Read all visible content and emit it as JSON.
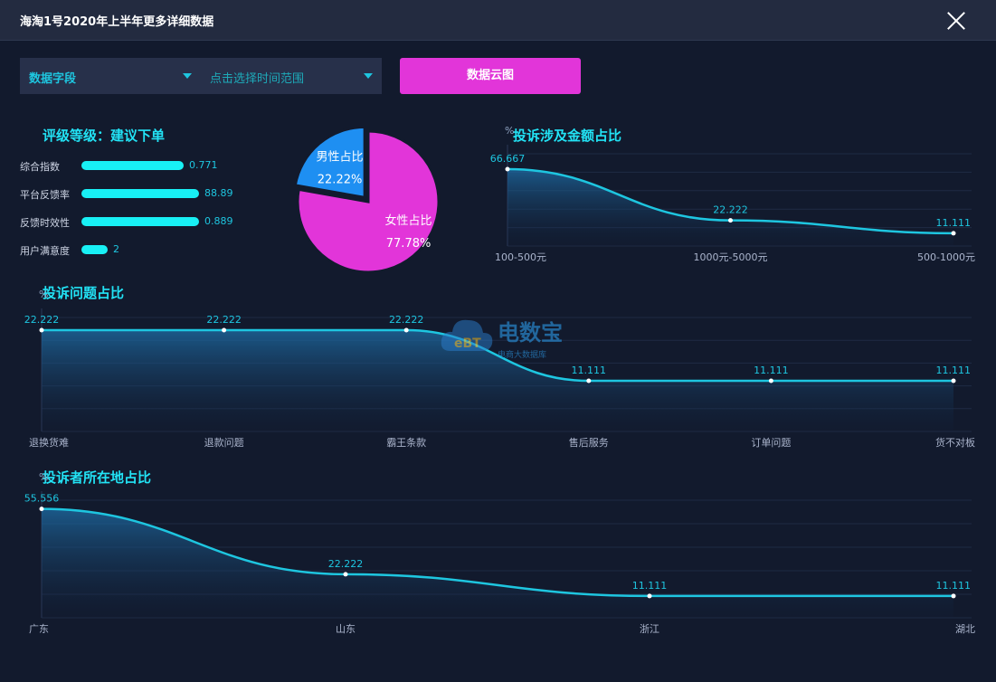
{
  "window": {
    "title": "海淘1号2020年上半年更多详细数据"
  },
  "controls": {
    "field_select": "数据字段",
    "time_select": "点击选择时间范围",
    "cloud_button": "数据云图"
  },
  "rating": {
    "title": "评级等级：建议下单",
    "rows": [
      {
        "label": "综合指数",
        "value": "0.771",
        "fill": 0.771
      },
      {
        "label": "平台反馈率",
        "value": "88.89",
        "fill": 0.889
      },
      {
        "label": "反馈时效性",
        "value": "0.889",
        "fill": 0.889
      },
      {
        "label": "用户满意度",
        "value": "2",
        "fill": 0.2
      }
    ]
  },
  "watermark": {
    "name": "电数宝",
    "sub": "电商大数据库"
  },
  "chart_data": [
    {
      "type": "pie",
      "slices": [
        {
          "label": "男性占比",
          "value": 22.22,
          "display": "22.22%",
          "color": "#1e8ff2"
        },
        {
          "label": "女性占比",
          "value": 77.78,
          "display": "77.78%",
          "color": "#e235d9"
        }
      ]
    },
    {
      "type": "area",
      "title": "投诉涉及金额占比",
      "ylabel": "%",
      "categories": [
        "100-500元",
        "1000元-5000元",
        "500-1000元"
      ],
      "values": [
        66.667,
        22.222,
        11.111
      ],
      "labels": [
        "66.667",
        "22.222",
        "11.111"
      ],
      "ylim": [
        0,
        80
      ],
      "line_color": "#1ec6e0"
    },
    {
      "type": "area",
      "title": "投诉问题占比",
      "ylabel": "%",
      "categories": [
        "退换货难",
        "退款问题",
        "霸王条款",
        "售后服务",
        "订单问题",
        "货不对板"
      ],
      "values": [
        22.222,
        22.222,
        22.222,
        11.111,
        11.111,
        11.111
      ],
      "labels": [
        "22.222",
        "22.222",
        "22.222",
        "11.111",
        "11.111",
        "11.111"
      ],
      "ylim": [
        0,
        25
      ],
      "line_color": "#1ec6e0"
    },
    {
      "type": "area",
      "title": "投诉者所在地占比",
      "ylabel": "%",
      "categories": [
        "广东",
        "山东",
        "浙江",
        "湖北"
      ],
      "values": [
        55.556,
        22.222,
        11.111,
        11.111
      ],
      "labels": [
        "55.556",
        "22.222",
        "11.111",
        "11.111"
      ],
      "ylim": [
        0,
        60
      ],
      "line_color": "#1ec6e0"
    }
  ]
}
